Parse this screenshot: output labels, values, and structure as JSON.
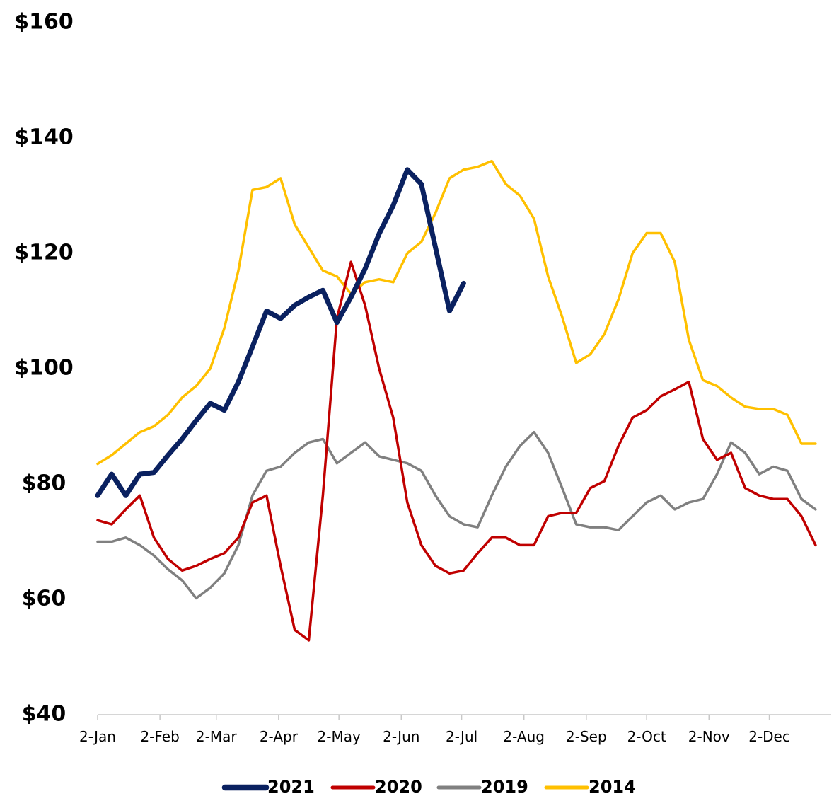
{
  "chart_data": {
    "type": "line",
    "xlim": [
      0,
      363
    ],
    "xticks": [
      {
        "value": 0,
        "label": "2-Jan"
      },
      {
        "value": 31,
        "label": "2-Feb"
      },
      {
        "value": 59,
        "label": "2-Mar"
      },
      {
        "value": 90,
        "label": "2-Apr"
      },
      {
        "value": 120,
        "label": "2-May"
      },
      {
        "value": 151,
        "label": "2-Jun"
      },
      {
        "value": 181,
        "label": "2-Jul"
      },
      {
        "value": 212,
        "label": "2-Aug"
      },
      {
        "value": 243,
        "label": "2-Sep"
      },
      {
        "value": 273,
        "label": "2-Oct"
      },
      {
        "value": 304,
        "label": "2-Nov"
      },
      {
        "value": 334,
        "label": "2-Dec"
      }
    ],
    "ylim": [
      40,
      160
    ],
    "yticks": [
      {
        "value": 40,
        "label": "$40"
      },
      {
        "value": 60,
        "label": "$60"
      },
      {
        "value": 80,
        "label": "$80"
      },
      {
        "value": 100,
        "label": "$100"
      },
      {
        "value": 120,
        "label": "$120"
      },
      {
        "value": 140,
        "label": "$140"
      },
      {
        "value": 160,
        "label": "$160"
      }
    ],
    "x": [
      0,
      7,
      14,
      21,
      28,
      35,
      42,
      49,
      56,
      63,
      70,
      77,
      84,
      91,
      98,
      105,
      112,
      119,
      126,
      133,
      140,
      147,
      154,
      161,
      168,
      175,
      182,
      189,
      196,
      203,
      210,
      217,
      224,
      231,
      238,
      245,
      252,
      259,
      266,
      273,
      280,
      287,
      294,
      301,
      308,
      315,
      322,
      329,
      336,
      343,
      350,
      357
    ],
    "legend": "bottom",
    "series": [
      {
        "name": "2021",
        "color": "#0a2160",
        "width": 7,
        "values": [
          78,
          81.7,
          78,
          81.7,
          82,
          85,
          87.8,
          91,
          94,
          92.8,
          97.7,
          103.8,
          110,
          108.7,
          111,
          112.4,
          113.6,
          108,
          112.4,
          117.3,
          123.4,
          128.3,
          134.5,
          132,
          121,
          110,
          114.8,
          null,
          null,
          null,
          null,
          null,
          null,
          null,
          null,
          null,
          null,
          null,
          null,
          null,
          null,
          null,
          null,
          null,
          null,
          null,
          null,
          null,
          null,
          null,
          null,
          null
        ]
      },
      {
        "name": "2020",
        "color": "#c00000",
        "width": 3.5,
        "values": [
          73.7,
          73,
          75.6,
          78,
          70.7,
          67,
          65,
          65.8,
          67,
          68,
          70.7,
          76.8,
          78,
          65.8,
          54.7,
          52.9,
          78,
          108.7,
          118.5,
          111,
          100,
          91.5,
          76.8,
          69.4,
          65.8,
          64.5,
          65,
          68,
          70.7,
          70.7,
          69.4,
          69.4,
          74.4,
          75,
          75,
          79.3,
          80.5,
          86.6,
          91.5,
          92.8,
          95.2,
          96.4,
          97.7,
          87.8,
          84.2,
          85.4,
          79.3,
          78,
          77.4,
          77.4,
          74.4,
          69.4
        ]
      },
      {
        "name": "2019",
        "color": "#808080",
        "width": 3.5,
        "values": [
          70,
          70,
          70.7,
          69.4,
          67.6,
          65.2,
          63.3,
          60.2,
          62,
          64.5,
          69.4,
          78,
          82.3,
          83,
          85.4,
          87.2,
          87.8,
          83.6,
          85.4,
          87.2,
          84.8,
          84.2,
          83.6,
          82.3,
          78,
          74.4,
          73,
          72.5,
          78,
          83,
          86.6,
          89,
          85.4,
          79.3,
          73,
          72.5,
          72.5,
          72,
          74.4,
          76.8,
          78,
          75.6,
          76.8,
          77.4,
          81.7,
          87.2,
          85.4,
          81.7,
          83,
          82.3,
          77.4,
          75.6
        ]
      },
      {
        "name": "2014",
        "color": "#ffc000",
        "width": 3.5,
        "values": [
          83.5,
          85,
          87,
          89,
          90,
          92,
          95,
          97,
          100,
          107,
          117,
          131,
          131.5,
          133,
          125,
          121,
          117,
          116,
          113,
          115,
          115.5,
          115,
          120,
          122,
          127,
          133,
          134.5,
          135,
          136,
          132,
          130,
          126,
          116,
          109,
          101,
          102.5,
          106,
          112,
          120,
          123.5,
          123.5,
          118.5,
          105,
          98,
          97,
          95,
          93.4,
          93,
          93,
          92,
          87,
          87
        ]
      }
    ]
  }
}
